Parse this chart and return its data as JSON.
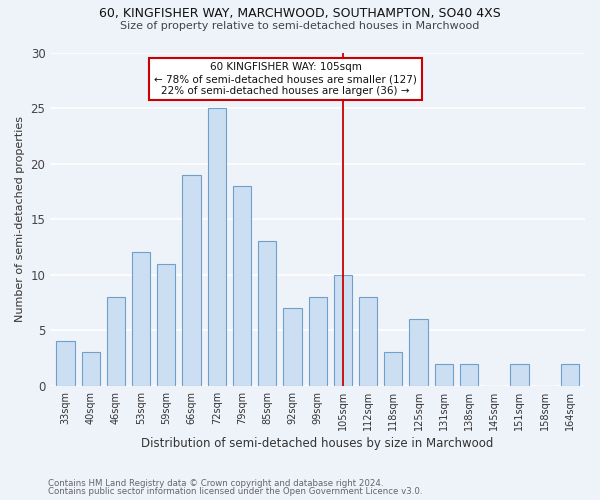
{
  "title1": "60, KINGFISHER WAY, MARCHWOOD, SOUTHAMPTON, SO40 4XS",
  "title2": "Size of property relative to semi-detached houses in Marchwood",
  "xlabel": "Distribution of semi-detached houses by size in Marchwood",
  "ylabel": "Number of semi-detached properties",
  "categories": [
    "33sqm",
    "40sqm",
    "46sqm",
    "53sqm",
    "59sqm",
    "66sqm",
    "72sqm",
    "79sqm",
    "85sqm",
    "92sqm",
    "99sqm",
    "105sqm",
    "112sqm",
    "118sqm",
    "125sqm",
    "131sqm",
    "138sqm",
    "145sqm",
    "151sqm",
    "158sqm",
    "164sqm"
  ],
  "values": [
    4,
    3,
    8,
    12,
    11,
    19,
    25,
    18,
    13,
    7,
    8,
    10,
    8,
    3,
    6,
    2,
    2,
    0,
    2,
    0,
    2
  ],
  "bar_color": "#ccdff2",
  "bar_edge_color": "#6fa0cc",
  "highlight_line_color": "#cc0000",
  "annotation_title": "60 KINGFISHER WAY: 105sqm",
  "annotation_line1": "← 78% of semi-detached houses are smaller (127)",
  "annotation_line2": "22% of semi-detached houses are larger (36) →",
  "annotation_box_color": "#cc0000",
  "ylim": [
    0,
    30
  ],
  "yticks": [
    0,
    5,
    10,
    15,
    20,
    25,
    30
  ],
  "footer1": "Contains HM Land Registry data © Crown copyright and database right 2024.",
  "footer2": "Contains public sector information licensed under the Open Government Licence v3.0.",
  "bg_color": "#eef2f9",
  "grid_color": "#ffffff"
}
